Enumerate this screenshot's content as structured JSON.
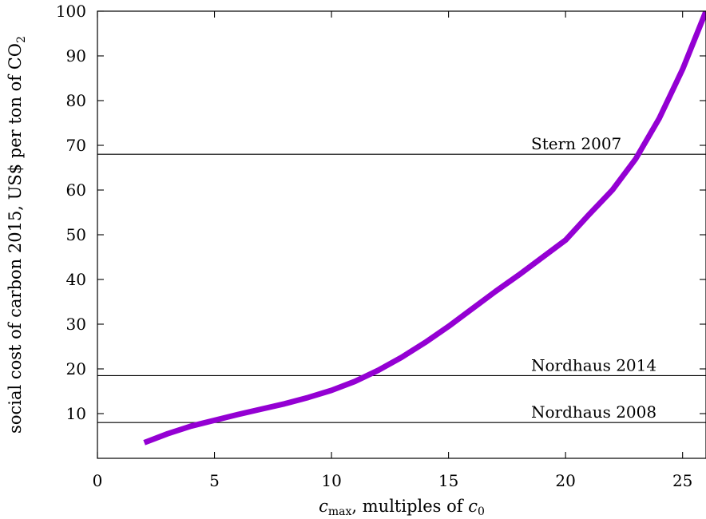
{
  "chart_data": {
    "type": "line",
    "title": "",
    "xlabel": "c_max, multiples of c_0",
    "xlabel_parts": {
      "var": "c",
      "var_sub": "max",
      "middle": ", multiples of ",
      "var2": "c",
      "var2_sub": "0"
    },
    "ylabel": "social cost of carbon 2015, US$ per ton of CO2",
    "ylabel_parts": {
      "main": "social cost of carbon 2015, US$ per ton of CO",
      "sub": "2"
    },
    "xlim": [
      0,
      26
    ],
    "ylim": [
      0,
      100
    ],
    "x_ticks": [
      0,
      5,
      10,
      15,
      20,
      25
    ],
    "y_ticks": [
      10,
      20,
      30,
      40,
      50,
      60,
      70,
      80,
      90,
      100
    ],
    "grid": false,
    "series": [
      {
        "color": "#9400D3",
        "x": [
          2,
          3,
          4,
          5,
          6,
          7,
          8,
          9,
          10,
          11,
          12,
          13,
          14,
          15,
          16,
          17,
          18,
          19,
          20,
          21,
          22,
          23,
          24,
          25,
          26
        ],
        "y": [
          3.5,
          5.5,
          7.2,
          8.5,
          9.8,
          11.0,
          12.2,
          13.6,
          15.2,
          17.2,
          19.7,
          22.6,
          25.9,
          29.5,
          33.4,
          37.3,
          41.0,
          44.9,
          48.8,
          54.5,
          60.0,
          67.0,
          76.0,
          87.0,
          100.0
        ]
      }
    ],
    "reference_lines": [
      {
        "label": "Stern 2007",
        "y": 68
      },
      {
        "label": "Nordhaus 2014",
        "y": 18.5
      },
      {
        "label": "Nordhaus 2008",
        "y": 8
      }
    ]
  }
}
